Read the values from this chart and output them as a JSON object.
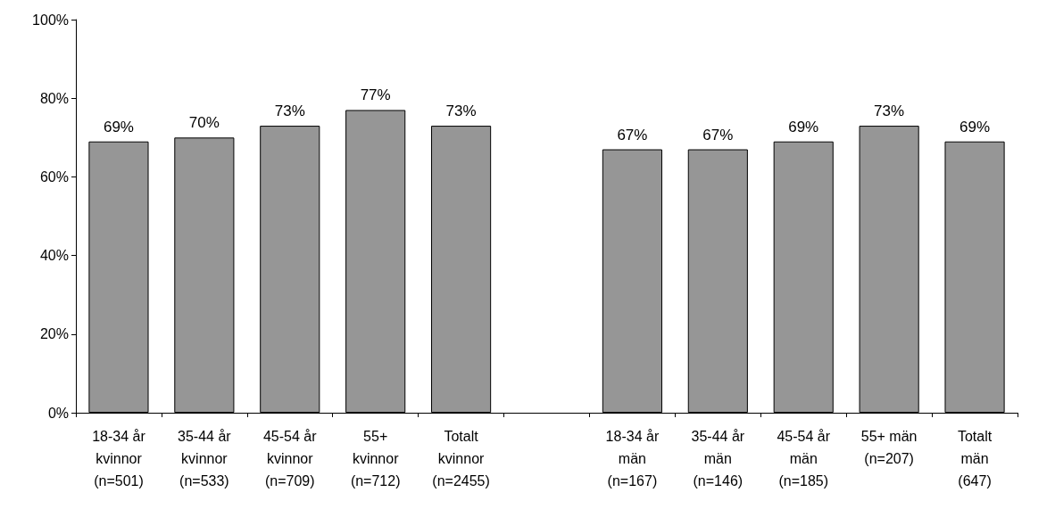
{
  "chart_data": {
    "type": "bar",
    "categories": [
      "18-34 år\nkvinnor\n(n=501)",
      "35-44 år\nkvinnor\n(n=533)",
      "45-54 år\nkvinnor\n(n=709)",
      "55+\nkvinnor\n(n=712)",
      "Totalt\nkvinnor\n(n=2455)",
      null,
      "18-34 år\nmän\n(n=167)",
      "35-44 år\nmän\n(n=146)",
      "45-54 år\nmän\n(n=185)",
      "55+ män\n(n=207)",
      "Totalt\nmän\n(647)"
    ],
    "values": [
      69,
      70,
      73,
      77,
      73,
      null,
      67,
      67,
      69,
      73,
      69
    ],
    "value_labels": [
      "69%",
      "70%",
      "73%",
      "77%",
      "73%",
      null,
      "67%",
      "67%",
      "69%",
      "73%",
      "69%"
    ],
    "color": "#969696",
    "ylim": [
      0,
      100
    ],
    "yticks": [
      {
        "value": 0,
        "label": "0%"
      },
      {
        "value": 20,
        "label": "20%"
      },
      {
        "value": 40,
        "label": "40%"
      },
      {
        "value": 60,
        "label": "60%"
      },
      {
        "value": 80,
        "label": "80%"
      },
      {
        "value": 100,
        "label": "100%"
      }
    ],
    "grid": false
  }
}
